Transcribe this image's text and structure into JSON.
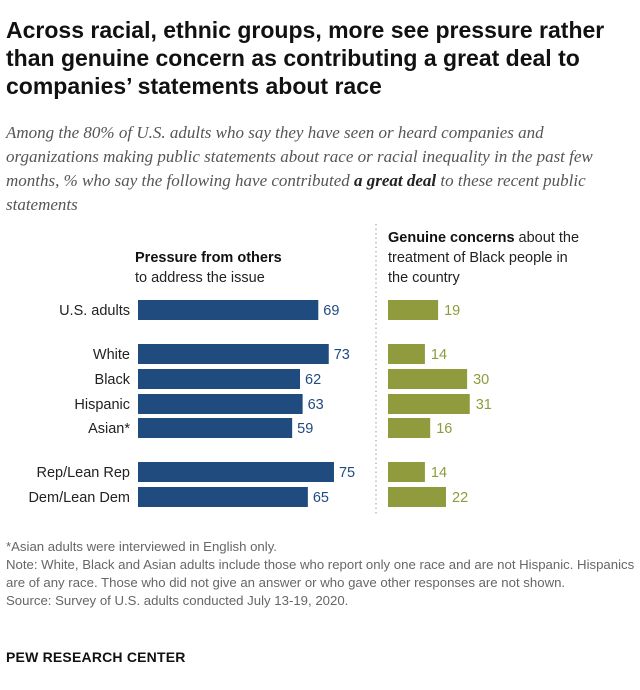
{
  "title": "Across racial, ethnic groups, more see pressure rather than genuine concern as contributing a great deal to companies’ statements about race",
  "subtitle": {
    "text": "Among the 80% of U.S. adults who say they have seen or heard companies and organizations making public statements about race or racial inequality in the past few months, % who say the following have contributed",
    "emphasis": "a great deal",
    "suffix": "to these recent public statements"
  },
  "chart_data": {
    "type": "bar",
    "categories": [
      "U.S. adults",
      "White",
      "Black",
      "Hispanic",
      "Asian*",
      "Rep/Lean Rep",
      "Dem/Lean Dem"
    ],
    "groups": [
      [
        0
      ],
      [
        1,
        2,
        3,
        4
      ],
      [
        5,
        6
      ]
    ],
    "series": [
      {
        "name": "Pressure from others to address the issue",
        "header_bold": "Pressure from others",
        "header_rest": "to address the issue",
        "color": "#1f4b7e",
        "values": [
          69,
          73,
          62,
          63,
          59,
          75,
          65
        ]
      },
      {
        "name": "Genuine concerns about the treatment of Black people in the country",
        "header_bold": "Genuine concerns",
        "header_rest_line1": "about the",
        "header_rest_line2": "treatment of Black people in",
        "header_rest_line3": "the country",
        "color": "#8f9b3c",
        "values": [
          19,
          14,
          30,
          31,
          16,
          14,
          22
        ]
      }
    ]
  },
  "notes": {
    "asterisk": "*Asian adults were interviewed in English only.",
    "note": "Note: White, Black and Asian adults include those who report only one race and are not Hispanic. Hispanics are of any race. Those who did not give an answer or who gave other responses are not shown.",
    "source": "Source: Survey of U.S. adults conducted July 13-19, 2020."
  },
  "logo": "PEW RESEARCH CENTER"
}
